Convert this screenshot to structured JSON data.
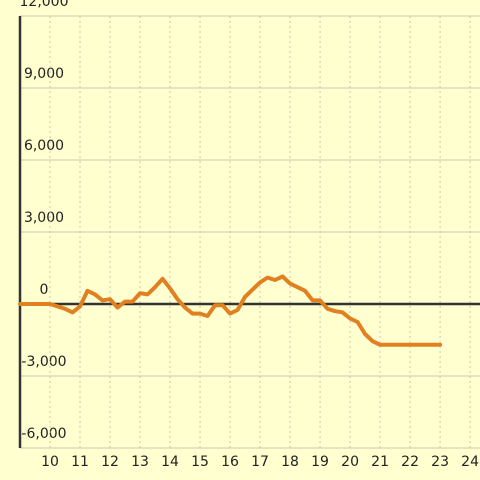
{
  "chart_data": {
    "type": "line",
    "x": [
      9,
      10,
      10.25,
      10.5,
      10.75,
      11,
      11.25,
      11.5,
      11.75,
      12,
      12.25,
      12.5,
      12.75,
      13,
      13.25,
      13.5,
      13.75,
      14,
      14.25,
      14.5,
      14.75,
      15,
      15.25,
      15.5,
      15.75,
      16,
      16.25,
      16.5,
      16.75,
      17,
      17.25,
      17.5,
      17.75,
      18,
      18.25,
      18.5,
      18.75,
      19,
      19.25,
      19.5,
      19.75,
      20,
      20.25,
      20.5,
      20.75,
      21,
      21.25,
      23
    ],
    "values": [
      0,
      0,
      -100,
      -200,
      -350,
      -100,
      550,
      400,
      150,
      200,
      -150,
      100,
      100,
      450,
      400,
      700,
      1050,
      650,
      200,
      -150,
      -400,
      -400,
      -500,
      -50,
      -50,
      -400,
      -250,
      300,
      600,
      900,
      1100,
      1000,
      1150,
      850,
      700,
      550,
      150,
      150,
      -200,
      -300,
      -350,
      -600,
      -750,
      -1250,
      -1550,
      -1700,
      -1700,
      -1700
    ],
    "color": "#e08020",
    "xlim": [
      9,
      24.33
    ],
    "xticks": [
      10,
      11,
      12,
      13,
      14,
      15,
      16,
      17,
      18,
      19,
      20,
      21,
      22,
      23,
      24
    ],
    "ylim": [
      -6000,
      12000
    ],
    "yticks": [
      {
        "value": -6000,
        "label": "-6,000"
      },
      {
        "value": -3000,
        "label": "-3,000"
      },
      0,
      {
        "value": 3000,
        "label": "3,000"
      },
      {
        "value": 6000,
        "label": "6,000"
      },
      {
        "value": 9000,
        "label": "9,000"
      },
      {
        "value": 12000,
        "label": "12,000"
      }
    ],
    "grid": true
  }
}
